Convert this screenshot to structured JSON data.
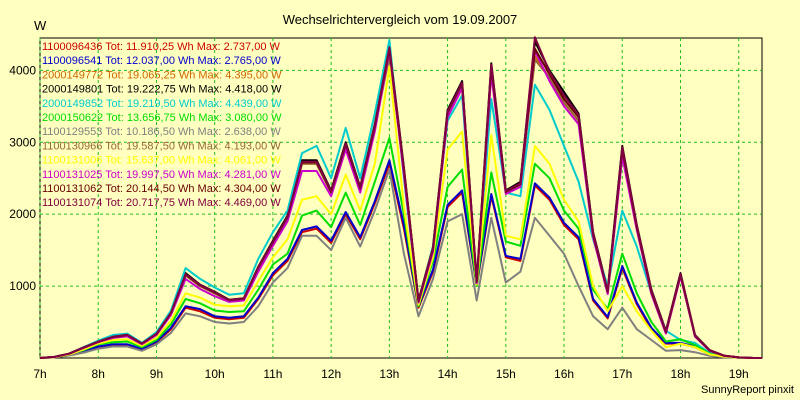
{
  "chart_data": {
    "type": "line",
    "title": "Wechselrichtervergleich vom 19.09.2007",
    "ylabel": "W",
    "xlabel": "",
    "footer": "SunnyReport pinxit",
    "ylim": [
      0,
      4450
    ],
    "xlim": [
      7.0,
      19.4
    ],
    "yticks": [
      1000,
      2000,
      3000,
      4000
    ],
    "xticks": [
      {
        "v": 7,
        "label": "7h"
      },
      {
        "v": 8,
        "label": "8h"
      },
      {
        "v": 9,
        "label": "9h"
      },
      {
        "v": 10,
        "label": "10h"
      },
      {
        "v": 11,
        "label": "11h"
      },
      {
        "v": 12,
        "label": "12h"
      },
      {
        "v": 13,
        "label": "13h"
      },
      {
        "v": 14,
        "label": "14h"
      },
      {
        "v": 15,
        "label": "15h"
      },
      {
        "v": 16,
        "label": "16h"
      },
      {
        "v": 17,
        "label": "17h"
      },
      {
        "v": 18,
        "label": "18h"
      },
      {
        "v": 19,
        "label": "19h"
      }
    ],
    "grid": true,
    "legend_position": "top-left",
    "x": [
      7.0,
      7.25,
      7.5,
      7.75,
      8.0,
      8.25,
      8.5,
      8.75,
      9.0,
      9.25,
      9.5,
      9.75,
      10.0,
      10.25,
      10.5,
      10.75,
      11.0,
      11.25,
      11.5,
      11.75,
      12.0,
      12.25,
      12.5,
      12.75,
      13.0,
      13.25,
      13.5,
      13.75,
      14.0,
      14.25,
      14.5,
      14.75,
      15.0,
      15.25,
      15.5,
      15.75,
      16.0,
      16.25,
      16.5,
      16.75,
      17.0,
      17.25,
      17.5,
      17.75,
      18.0,
      18.25,
      18.5,
      18.75,
      19.0,
      19.25,
      19.4
    ],
    "series": [
      {
        "name": "1100096436",
        "legend": "1100096436 Tot: 11.910,25 Wh Max: 2.737,00 W",
        "color": "#cc0000",
        "values": [
          0,
          10,
          40,
          90,
          150,
          180,
          180,
          120,
          220,
          400,
          700,
          650,
          560,
          540,
          560,
          820,
          1150,
          1350,
          1750,
          1800,
          1600,
          2000,
          1650,
          2150,
          2700,
          1800,
          700,
          1200,
          2100,
          2300,
          1000,
          2250,
          1400,
          1350,
          2400,
          2200,
          1850,
          1650,
          800,
          550,
          1250,
          750,
          400,
          200,
          200,
          150,
          50,
          20,
          5,
          0,
          0
        ]
      },
      {
        "name": "1100096541",
        "legend": "1100096541 Tot: 12.037,00 Wh Max: 2.765,00 W",
        "color": "#0000cc",
        "values": [
          0,
          10,
          45,
          95,
          160,
          190,
          190,
          130,
          230,
          420,
          720,
          680,
          580,
          560,
          580,
          840,
          1180,
          1380,
          1780,
          1830,
          1630,
          2030,
          1680,
          2180,
          2750,
          1850,
          720,
          1230,
          2130,
          2330,
          1020,
          2280,
          1420,
          1380,
          2430,
          2230,
          1880,
          1680,
          820,
          570,
          1280,
          770,
          420,
          210,
          210,
          160,
          55,
          22,
          6,
          0,
          0
        ]
      },
      {
        "name": "2000149772",
        "legend": "2000149772 Tot: 19.065,25 Wh Max: 4.395,00 W",
        "color": "#cc6600",
        "values": [
          0,
          15,
          60,
          140,
          220,
          290,
          320,
          200,
          330,
          620,
          1150,
          1000,
          900,
          800,
          820,
          1250,
          1600,
          1950,
          2700,
          2700,
          2300,
          2950,
          2350,
          3200,
          4300,
          2600,
          780,
          1500,
          3400,
          3800,
          1050,
          4000,
          2300,
          2400,
          4200,
          3900,
          3550,
          3300,
          1700,
          900,
          2850,
          1800,
          900,
          350,
          1150,
          300,
          100,
          30,
          8,
          0,
          0
        ]
      },
      {
        "name": "2000149801",
        "legend": "2000149801 Tot: 19.222,75 Wh Max: 4.418,00 W",
        "color": "#000000",
        "values": [
          0,
          15,
          60,
          150,
          230,
          300,
          320,
          200,
          340,
          630,
          1180,
          1020,
          920,
          810,
          830,
          1270,
          1630,
          1980,
          2750,
          2750,
          2330,
          3000,
          2380,
          3250,
          4330,
          2650,
          800,
          1550,
          3450,
          3850,
          1080,
          4100,
          2330,
          2450,
          4400,
          4000,
          3700,
          3400,
          1750,
          950,
          2950,
          1850,
          950,
          380,
          1180,
          320,
          110,
          32,
          8,
          0,
          0
        ]
      },
      {
        "name": "2000149852",
        "legend": "2000149852 Tot: 19.219,50 Wh Max: 4.439,00 W",
        "color": "#00cccc",
        "values": [
          0,
          15,
          60,
          150,
          240,
          320,
          340,
          210,
          360,
          660,
          1250,
          1100,
          980,
          880,
          900,
          1380,
          1750,
          2050,
          2850,
          2950,
          2500,
          3200,
          2500,
          3400,
          4420,
          2500,
          780,
          1550,
          3300,
          3650,
          1050,
          3600,
          2300,
          2250,
          3800,
          3450,
          2950,
          2450,
          1650,
          1000,
          2050,
          1550,
          900,
          380,
          250,
          210,
          70,
          25,
          6,
          0,
          0
        ]
      },
      {
        "name": "2000150622",
        "legend": "2000150622 Tot: 13.656,75 Wh Max: 3.080,00 W",
        "color": "#00dd00",
        "values": [
          0,
          12,
          50,
          110,
          190,
          220,
          230,
          150,
          250,
          470,
          820,
          760,
          660,
          640,
          650,
          950,
          1300,
          1450,
          1980,
          2050,
          1820,
          2300,
          1850,
          2450,
          3060,
          2000,
          720,
          1350,
          2380,
          2620,
          1000,
          2580,
          1620,
          1560,
          2700,
          2500,
          2050,
          1800,
          950,
          680,
          1450,
          900,
          500,
          230,
          260,
          180,
          60,
          22,
          6,
          0,
          0
        ]
      },
      {
        "name": "1100129553",
        "legend": "1100129553 Tot: 10.186,50 Wh Max: 2.638,00 W",
        "color": "#808080",
        "values": [
          0,
          8,
          35,
          75,
          130,
          160,
          160,
          100,
          190,
          350,
          620,
          580,
          500,
          480,
          500,
          720,
          1050,
          1250,
          1700,
          1700,
          1500,
          1950,
          1550,
          2050,
          2620,
          1450,
          580,
          1100,
          1900,
          2000,
          800,
          1950,
          1050,
          1200,
          1950,
          1700,
          1450,
          1000,
          580,
          400,
          700,
          400,
          250,
          100,
          110,
          80,
          30,
          10,
          3,
          0,
          0
        ]
      },
      {
        "name": "1100130966",
        "legend": "1100130966 Tot: 19.587,50 Wh Max: 4.193,00 W",
        "color": "#996633",
        "values": [
          0,
          15,
          60,
          140,
          220,
          290,
          320,
          200,
          330,
          620,
          1150,
          1000,
          900,
          800,
          820,
          1250,
          1600,
          1950,
          2700,
          2700,
          2300,
          2950,
          2350,
          3200,
          4190,
          2600,
          780,
          1500,
          3400,
          3800,
          1050,
          4000,
          2300,
          2400,
          4150,
          3900,
          3550,
          3300,
          1700,
          900,
          2850,
          1800,
          900,
          350,
          1150,
          300,
          100,
          30,
          8,
          0,
          0
        ]
      },
      {
        "name": "1100131006",
        "legend": "1100131006 Tot: 15.637,00 Wh Max: 4.061,00 W",
        "color": "#ffff00",
        "values": [
          0,
          12,
          50,
          120,
          200,
          250,
          260,
          170,
          280,
          520,
          900,
          840,
          740,
          720,
          730,
          1070,
          1400,
          1650,
          2200,
          2250,
          2000,
          2550,
          2050,
          2700,
          4050,
          2100,
          740,
          1400,
          2900,
          3150,
          1020,
          3100,
          1700,
          1650,
          2950,
          2700,
          2200,
          1900,
          1000,
          650,
          1000,
          650,
          380,
          150,
          200,
          150,
          50,
          20,
          5,
          0,
          0
        ]
      },
      {
        "name": "1100131025",
        "legend": "1100131025 Tot: 19.997,50 Wh Max: 4.281,00 W",
        "color": "#cc00cc",
        "values": [
          0,
          15,
          60,
          140,
          220,
          280,
          300,
          190,
          320,
          600,
          1100,
          960,
          860,
          780,
          800,
          1200,
          1560,
          1900,
          2600,
          2600,
          2250,
          2900,
          2300,
          3150,
          4270,
          2550,
          770,
          1480,
          3350,
          3750,
          1040,
          3950,
          2280,
          2380,
          4270,
          3850,
          3500,
          3250,
          1680,
          890,
          2800,
          1780,
          890,
          340,
          1130,
          300,
          100,
          30,
          8,
          0,
          0
        ]
      },
      {
        "name": "1100131062",
        "legend": "1100131062 Tot: 20.144,50 Wh Max: 4.304,00 W",
        "color": "#660000",
        "values": [
          0,
          15,
          60,
          145,
          225,
          290,
          320,
          200,
          335,
          625,
          1160,
          1010,
          910,
          805,
          825,
          1260,
          1610,
          1960,
          2720,
          2720,
          2310,
          2970,
          2360,
          3220,
          4300,
          2620,
          790,
          1520,
          3420,
          3820,
          1060,
          4050,
          2310,
          2420,
          4300,
          3950,
          3600,
          3350,
          1720,
          920,
          2900,
          1820,
          920,
          360,
          1160,
          310,
          105,
          31,
          8,
          0,
          0
        ]
      },
      {
        "name": "1100131074",
        "legend": "1100131074 Tot: 20.717,75 Wh Max: 4.469,00 W",
        "color": "#800040",
        "values": [
          0,
          15,
          60,
          148,
          228,
          295,
          322,
          202,
          338,
          628,
          1165,
          1015,
          915,
          808,
          828,
          1265,
          1615,
          1965,
          2730,
          2730,
          2320,
          2980,
          2370,
          3230,
          4320,
          2630,
          795,
          1530,
          3430,
          3830,
          1065,
          4080,
          2320,
          2430,
          4460,
          3980,
          3650,
          3380,
          1740,
          930,
          2930,
          1840,
          940,
          370,
          1170,
          315,
          108,
          32,
          8,
          0,
          0
        ]
      }
    ]
  }
}
